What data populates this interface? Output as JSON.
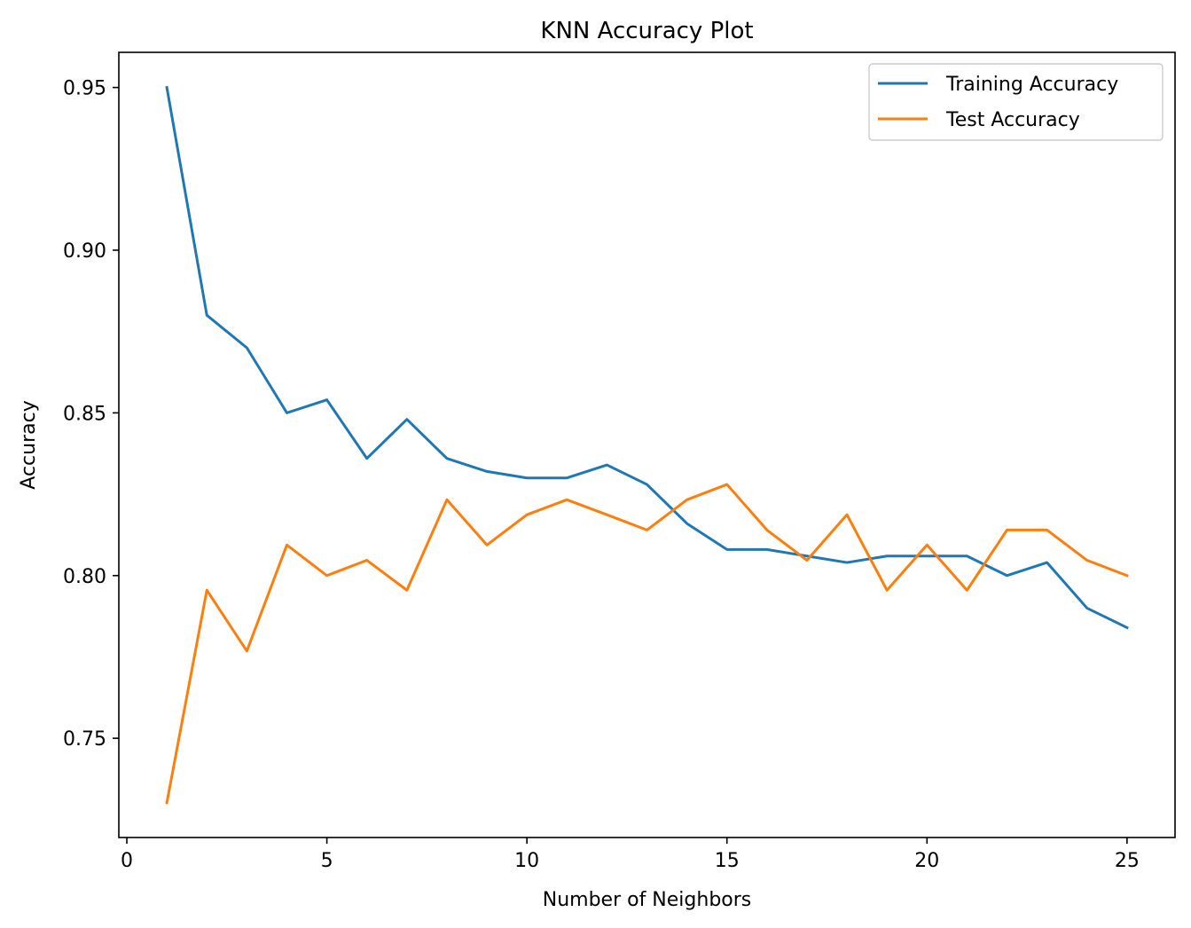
{
  "chart_data": {
    "type": "line",
    "title": "KNN Accuracy Plot",
    "xlabel": "Number of Neighbors",
    "ylabel": "Accuracy",
    "x": [
      1,
      2,
      3,
      4,
      5,
      6,
      7,
      8,
      9,
      10,
      11,
      12,
      13,
      14,
      15,
      16,
      17,
      18,
      19,
      20,
      21,
      22,
      23,
      24,
      25
    ],
    "xlim": [
      -0.2,
      26.2
    ],
    "ylim": [
      0.7195,
      0.9608
    ],
    "xticks": [
      0,
      5,
      10,
      15,
      20,
      25
    ],
    "xtick_labels": [
      "0",
      "5",
      "10",
      "15",
      "20",
      "25"
    ],
    "yticks": [
      0.75,
      0.8,
      0.85,
      0.9,
      0.95
    ],
    "ytick_labels": [
      "0.75",
      "0.80",
      "0.85",
      "0.90",
      "0.95"
    ],
    "grid": false,
    "legend_position": "top-right",
    "series": [
      {
        "name": "Training Accuracy",
        "color": "#1f77b4",
        "values": [
          0.95,
          0.88,
          0.87,
          0.85,
          0.854,
          0.836,
          0.848,
          0.836,
          0.832,
          0.83,
          0.83,
          0.834,
          0.828,
          0.816,
          0.808,
          0.808,
          0.806,
          0.804,
          0.806,
          0.806,
          0.806,
          0.8,
          0.804,
          0.79,
          0.784
        ]
      },
      {
        "name": "Test Accuracy",
        "color": "#ff7f0e",
        "values": [
          0.7302,
          0.7955,
          0.7768,
          0.8094,
          0.8,
          0.8047,
          0.7955,
          0.8233,
          0.8094,
          0.8187,
          0.8233,
          0.8187,
          0.814,
          0.8233,
          0.828,
          0.814,
          0.8047,
          0.8187,
          0.7955,
          0.8094,
          0.7955,
          0.814,
          0.814,
          0.8047,
          0.8
        ]
      }
    ]
  }
}
